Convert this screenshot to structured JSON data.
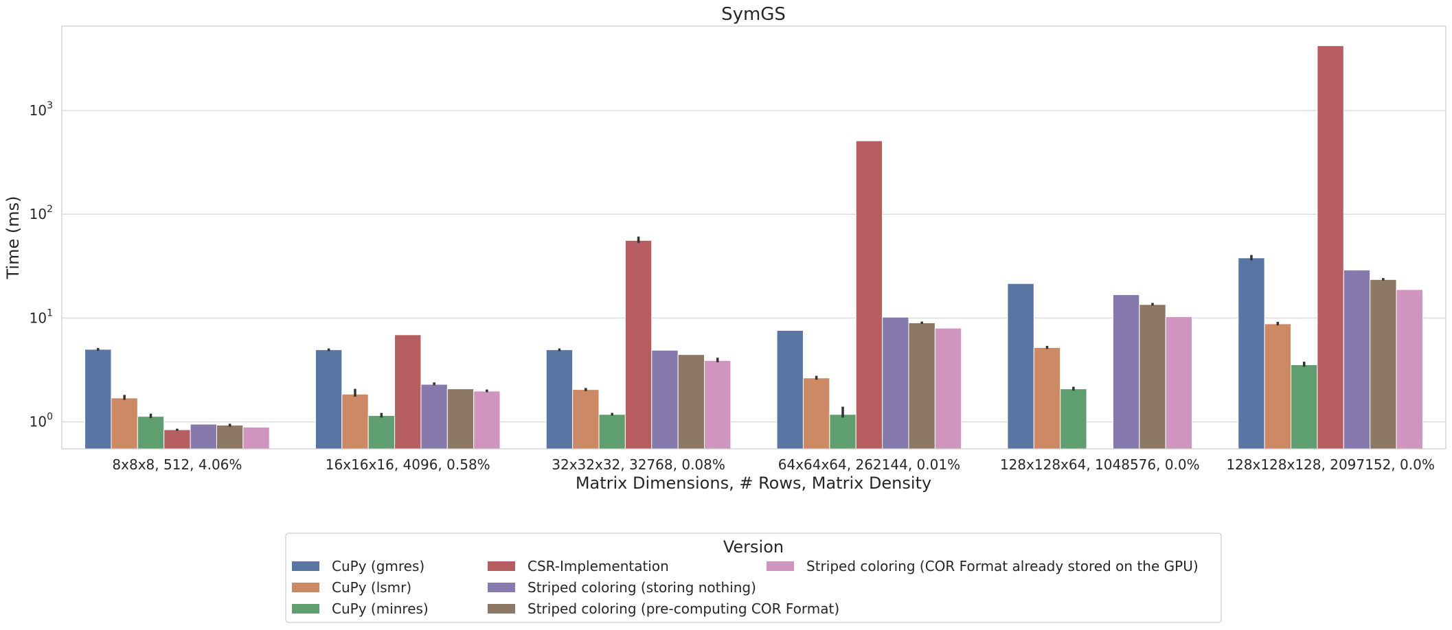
{
  "chart_data": {
    "type": "bar",
    "title": "SymGS",
    "xlabel": "Matrix Dimensions, # Rows, Matrix Density",
    "ylabel": "Time (ms)",
    "yscale": "log",
    "ylim": [
      0.55,
      6500
    ],
    "yticks": [
      1,
      10,
      100,
      1000
    ],
    "ytick_labels": [
      {
        "base": "10",
        "exp": "0"
      },
      {
        "base": "10",
        "exp": "1"
      },
      {
        "base": "10",
        "exp": "2"
      },
      {
        "base": "10",
        "exp": "3"
      }
    ],
    "grid": "y",
    "legend_title": "Version",
    "legend_position": "bottom-center",
    "categories": [
      "8x8x8, 512, 4.06%",
      "16x16x16, 4096, 0.58%",
      "32x32x32, 32768, 0.08%",
      "64x64x64, 262144, 0.01%",
      "128x128x64, 1048576, 0.0%",
      "128x128x128, 2097152, 0.0%"
    ],
    "series": [
      {
        "name": "CuPy (gmres)",
        "color": "#5875a4",
        "values": [
          5.0,
          4.95,
          4.95,
          7.6,
          21.5,
          38.0
        ],
        "err": [
          [
            4.85,
            5.15
          ],
          [
            4.8,
            5.1
          ],
          [
            4.8,
            5.1
          ],
          null,
          null,
          [
            36.0,
            40.5
          ]
        ]
      },
      {
        "name": "CuPy (lsmr)",
        "color": "#cc8963",
        "values": [
          1.7,
          1.85,
          2.05,
          2.65,
          5.2,
          8.8
        ],
        "err": [
          [
            1.63,
            1.82
          ],
          [
            1.75,
            2.08
          ],
          [
            1.98,
            2.12
          ],
          [
            2.55,
            2.78
          ],
          [
            5.05,
            5.4
          ],
          [
            8.5,
            9.2
          ]
        ]
      },
      {
        "name": "CuPy (minres)",
        "color": "#5f9e6e",
        "values": [
          1.13,
          1.15,
          1.18,
          1.18,
          2.08,
          3.55
        ],
        "err": [
          [
            1.09,
            1.2
          ],
          [
            1.1,
            1.22
          ],
          [
            1.15,
            1.22
          ],
          [
            1.1,
            1.4
          ],
          [
            2.0,
            2.18
          ],
          [
            3.4,
            3.8
          ]
        ]
      },
      {
        "name": "CSR-Implementation",
        "color": "#b55d60",
        "values": [
          0.84,
          6.9,
          56.0,
          510.0,
          null,
          4200.0
        ],
        "err": [
          [
            0.82,
            0.86
          ],
          null,
          [
            53.0,
            61.0
          ],
          null,
          null,
          null
        ]
      },
      {
        "name": "Striped coloring (storing nothing)",
        "color": "#857aab",
        "values": [
          0.95,
          2.3,
          4.9,
          10.2,
          16.8,
          29.0
        ],
        "err": [
          null,
          [
            2.25,
            2.4
          ],
          null,
          null,
          null,
          null
        ]
      },
      {
        "name": "Striped coloring (pre-computing COR Format)",
        "color": "#8d7866",
        "values": [
          0.93,
          2.08,
          4.45,
          9.0,
          13.5,
          23.5
        ],
        "err": [
          [
            0.9,
            0.96
          ],
          null,
          null,
          [
            8.8,
            9.25
          ],
          [
            13.2,
            14.0
          ],
          [
            23.0,
            24.3
          ]
        ]
      },
      {
        "name": "Striped coloring (COR Format already stored on the GPU)",
        "color": "#d095bf",
        "values": [
          0.89,
          1.98,
          3.9,
          8.0,
          10.3,
          18.8
        ],
        "err": [
          null,
          [
            1.93,
            2.05
          ],
          [
            3.75,
            4.15
          ],
          null,
          null,
          null
        ]
      }
    ]
  }
}
